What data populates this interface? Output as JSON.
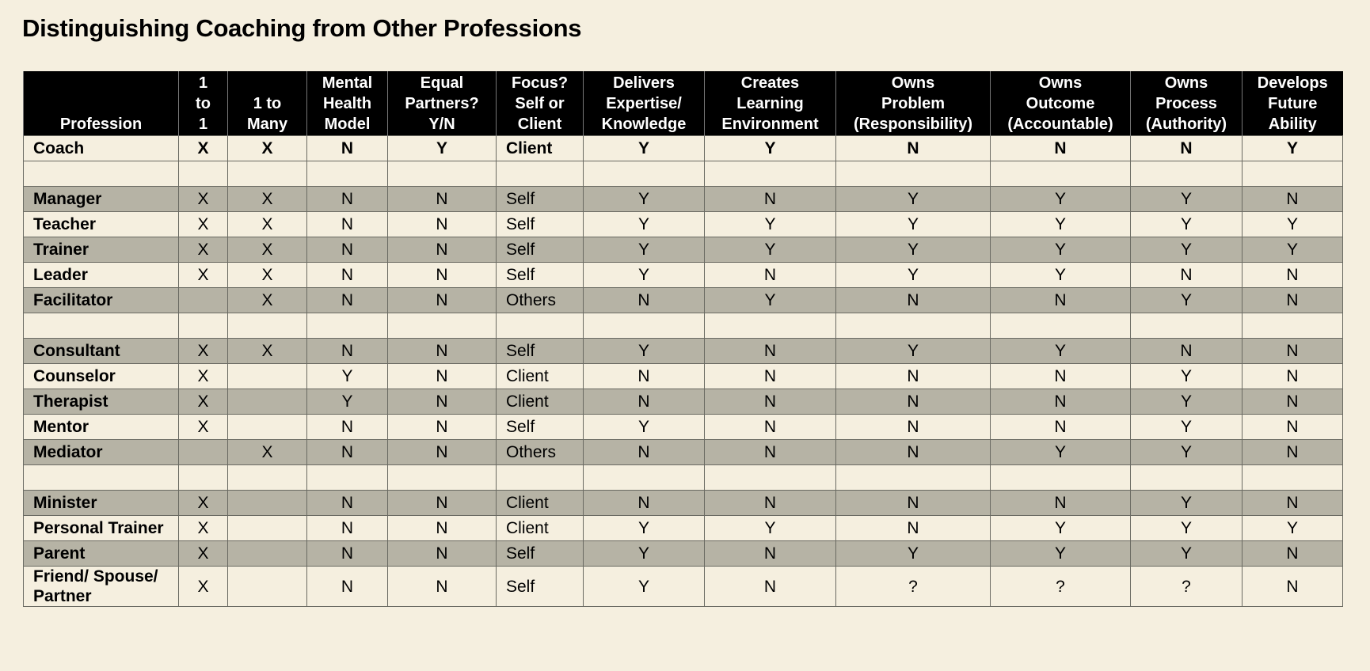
{
  "title": "Distinguishing Coaching from Other Professions",
  "table": {
    "columns": [
      "Profession",
      "1\nto\n1",
      "1 to\nMany",
      "Mental\nHealth\nModel",
      "Equal\nPartners?\nY/N",
      "Focus?\nSelf or\nClient",
      "Delivers\nExpertise/\nKnowledge",
      "Creates\nLearning\nEnvironment",
      "Owns\nProblem\n(Responsibility)",
      "Owns\nOutcome\n(Accountable)",
      "Owns\nProcess\n(Authority)",
      "Develops\nFuture\nAbility"
    ],
    "rows": [
      [
        "Coach",
        "X",
        "X",
        "N",
        "Y",
        "Client",
        "Y",
        "Y",
        "N",
        "N",
        "N",
        "Y"
      ],
      null,
      [
        "Manager",
        "X",
        "X",
        "N",
        "N",
        "Self",
        "Y",
        "N",
        "Y",
        "Y",
        "Y",
        "N"
      ],
      [
        "Teacher",
        "X",
        "X",
        "N",
        "N",
        "Self",
        "Y",
        "Y",
        "Y",
        "Y",
        "Y",
        "Y"
      ],
      [
        "Trainer",
        "X",
        "X",
        "N",
        "N",
        "Self",
        "Y",
        "Y",
        "Y",
        "Y",
        "Y",
        "Y"
      ],
      [
        "Leader",
        "X",
        "X",
        "N",
        "N",
        "Self",
        "Y",
        "N",
        "Y",
        "Y",
        "N",
        "N"
      ],
      [
        "Facilitator",
        null,
        "X",
        "N",
        "N",
        "Others",
        "N",
        "Y",
        "N",
        "N",
        "Y",
        "N"
      ],
      null,
      [
        "Consultant",
        "X",
        "X",
        "N",
        "N",
        "Self",
        "Y",
        "N",
        "Y",
        "Y",
        "N",
        "N"
      ],
      [
        "Counselor",
        "X",
        null,
        "Y",
        "N",
        "Client",
        "N",
        "N",
        "N",
        "N",
        "Y",
        "N"
      ],
      [
        "Therapist",
        "X",
        null,
        "Y",
        "N",
        "Client",
        "N",
        "N",
        "N",
        "N",
        "Y",
        "N"
      ],
      [
        "Mentor",
        "X",
        null,
        "N",
        "N",
        "Self",
        "Y",
        "N",
        "N",
        "N",
        "Y",
        "N"
      ],
      [
        "Mediator",
        null,
        "X",
        "N",
        "N",
        "Others",
        "N",
        "N",
        "N",
        "Y",
        "Y",
        "N"
      ],
      null,
      [
        "Minister",
        "X",
        null,
        "N",
        "N",
        "Client",
        "N",
        "N",
        "N",
        "N",
        "Y",
        "N"
      ],
      [
        "Personal Trainer",
        "X",
        null,
        "N",
        "N",
        "Client",
        "Y",
        "Y",
        "N",
        "Y",
        "Y",
        "Y"
      ],
      [
        "Parent",
        "X",
        null,
        "N",
        "N",
        "Self",
        "Y",
        "N",
        "Y",
        "Y",
        "Y",
        "N"
      ],
      [
        "Friend/ Spouse/ Partner",
        "X",
        null,
        "N",
        "N",
        "Self",
        "Y",
        "N",
        "?",
        "?",
        "?",
        "N"
      ]
    ]
  }
}
